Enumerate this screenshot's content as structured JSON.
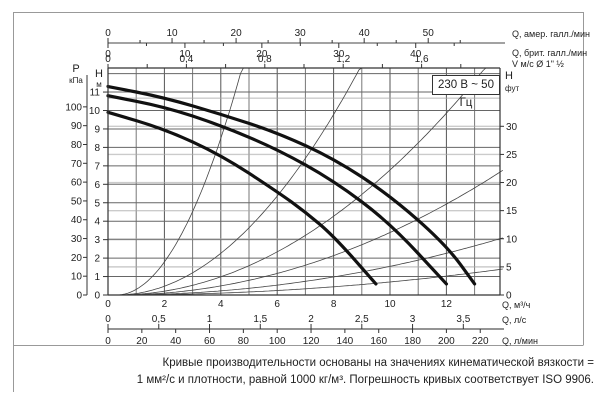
{
  "chart_data": {
    "type": "line",
    "title": "",
    "legend_box": "230 В ~ 50 Гц",
    "xlabel": "Q, м³/ч",
    "ylabel": "H, м",
    "xlim": [
      0,
      14
    ],
    "ylim": [
      0,
      11.5
    ],
    "grid": true,
    "primary_x_axis": {
      "label": "Q, м³/ч",
      "ticks": [
        0,
        2,
        4,
        6,
        8,
        10,
        12
      ]
    },
    "secondary_x_axes": [
      {
        "label": "Q, амер. галл./мин",
        "position": "top",
        "ticks": [
          0,
          10,
          20,
          30,
          40,
          50
        ]
      },
      {
        "label": "Q, брит. галл./мин",
        "position": "top",
        "ticks": [
          0,
          10,
          20,
          30,
          40
        ]
      },
      {
        "label": "V м/с Ø 1\" ½",
        "position": "top",
        "ticks": [
          "0",
          "0,4",
          "0,8",
          "1,2",
          "1,6"
        ]
      },
      {
        "label": "Q, л/с",
        "position": "bottom",
        "ticks": [
          "0",
          "0,5",
          "1",
          "1,5",
          "2",
          "2,5",
          "3",
          "3,5"
        ]
      },
      {
        "label": "Q, л/мин",
        "position": "bottom",
        "ticks": [
          0,
          20,
          40,
          60,
          80,
          100,
          120,
          140,
          160,
          180,
          200,
          220
        ]
      }
    ],
    "left_axes": [
      {
        "label": "P",
        "unit": "кПа",
        "ticks": [
          0,
          10,
          20,
          30,
          40,
          50,
          60,
          70,
          80,
          90,
          100
        ]
      },
      {
        "label": "H",
        "unit": "м",
        "ticks": [
          0,
          1,
          2,
          3,
          4,
          5,
          6,
          7,
          8,
          9,
          10,
          11
        ]
      }
    ],
    "right_axis": {
      "label": "H",
      "unit": "фут",
      "ticks": [
        0,
        5,
        10,
        15,
        20,
        25,
        30
      ]
    },
    "series": [
      {
        "name": "pump-curve-high",
        "style": "thick",
        "x": [
          0,
          2,
          4,
          6,
          8,
          10,
          12,
          13
        ],
        "y": [
          11.3,
          10.7,
          9.8,
          8.8,
          7.4,
          5.4,
          2.7,
          0.6
        ]
      },
      {
        "name": "pump-curve-mid",
        "style": "thick",
        "x": [
          0,
          2,
          4,
          6,
          8,
          10,
          12
        ],
        "y": [
          10.8,
          10.2,
          9.2,
          7.9,
          6.2,
          3.9,
          0.6
        ]
      },
      {
        "name": "pump-curve-low",
        "style": "thick",
        "x": [
          0,
          2,
          4,
          6,
          7,
          8,
          9.5
        ],
        "y": [
          9.9,
          9.0,
          7.6,
          5.6,
          4.5,
          3.2,
          0.6
        ]
      },
      {
        "name": "system-curve-1",
        "style": "thin",
        "k": 0.62
      },
      {
        "name": "system-curve-2",
        "style": "thin",
        "k": 0.165
      },
      {
        "name": "system-curve-3",
        "style": "thin",
        "k": 0.072
      },
      {
        "name": "system-curve-4",
        "style": "thin",
        "k": 0.036
      },
      {
        "name": "system-curve-5",
        "style": "thin",
        "k": 0.0165
      },
      {
        "name": "system-curve-6",
        "style": "thin",
        "k": 0.0075
      }
    ]
  },
  "labels": {
    "top_axis_1": "Q, амер. галл./мин",
    "top_axis_2": "Q, брит. галл./мин",
    "top_axis_3": "V м/с Ø 1\" ½",
    "p_label": "P",
    "p_unit": "кПа",
    "h_label": "H",
    "h_unit": "м",
    "h_right_label": "H",
    "h_right_unit": "фут",
    "x_axis_1": "Q, м³/ч",
    "x_axis_2": "Q, л/с",
    "x_axis_3": "Q, л/мин",
    "legend": "230 В ~ 50 Гц"
  },
  "caption": {
    "line1": "Кривые производительности основаны на значениях кинематической вязкости =",
    "line2": "1 мм²/с и плотности, равной 1000 кг/м³. Погрешность кривых соответствует ISO 9906."
  }
}
